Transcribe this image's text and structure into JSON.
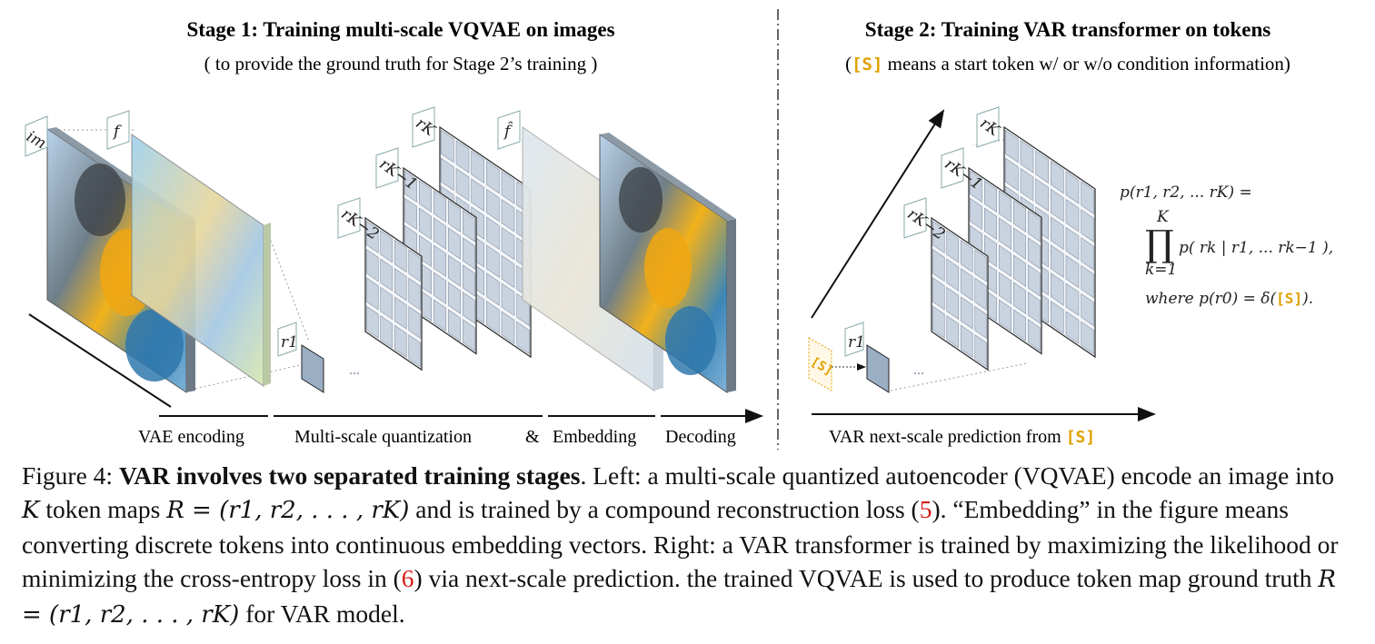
{
  "stage1": {
    "title": "Stage 1:  Training multi-scale VQVAE on images",
    "subtitle": "( to provide the ground truth for Stage 2’s training )",
    "labels": {
      "im": "im",
      "f": "f",
      "f_hat": "f̂",
      "rK": "rK",
      "rK1": "rK−1",
      "rK2": "rK−2",
      "r1": "r1",
      "dots": "..."
    },
    "steps": {
      "vae": "VAE encoding",
      "msq": "Multi-scale quantization",
      "amp": "&",
      "emb": "Embedding",
      "dec": "Decoding"
    }
  },
  "stage2": {
    "title": "Stage 2:  Training VAR transformer on tokens",
    "sub_open": "(",
    "sub_token": "[S]",
    "sub_rest": " means a start token w/ or w/o condition information)",
    "bottom_prefix": "VAR next-scale prediction from ",
    "bottom_token": "[S]",
    "start_token": "[S]",
    "labels": {
      "rK": "rK",
      "rK1": "rK−1",
      "rK2": "rK−2",
      "r1": "r1",
      "dots": "..."
    },
    "formula": {
      "line1": "p(r1, r2, ... rK) =",
      "prod_top": "K",
      "prod_sym": "∏",
      "prod_bot": "k=1",
      "line2": "p( rk | r1, ... rk−1 ),",
      "line3_prefix": "where  p(r0) = δ(",
      "line3_token": "[S]",
      "line3_suffix": ")."
    }
  },
  "caption": {
    "figure_label": "Figure 4: ",
    "bold": "VAR involves two separated training stages",
    "t1": ". Left: a multi-scale quantized autoencoder (VQVAE) encode an image into ",
    "K": "K",
    "t2": " token maps ",
    "R1": "R = (r1, r2, . . . , rK)",
    "t3": " and is trained by a compound reconstruction loss (",
    "ref5": "5",
    "t4": "). “Embedding” in the figure means converting discrete tokens into continuous embedding vectors. Right: a VAR transformer is trained by maximizing the likelihood or minimizing the cross-entropy loss in (",
    "ref6": "6",
    "t5": ") via next-scale prediction. the trained VQVAE is used to produce token map ground truth ",
    "R2": "R = (r1, r2, . . . , rK)",
    "t6": " for VAR model."
  }
}
